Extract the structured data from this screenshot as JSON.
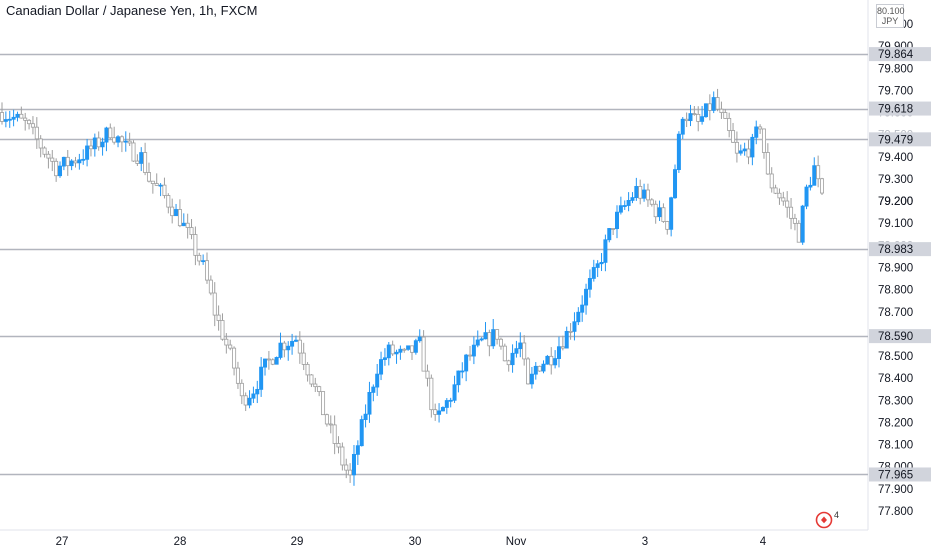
{
  "header": {
    "title": "Canadian Dollar / Japanese Yen, 1h, FXCM"
  },
  "currency_badge": {
    "top_text": "80.100",
    "label": "JPY"
  },
  "watermark": {
    "badge_number": "4"
  },
  "colors": {
    "up": "#2196f3",
    "down": "#9e9e9e",
    "level_line": "#b2b5be",
    "level_label_bg": "#d1d4dc",
    "axis_text": "#131722",
    "time_text": "#131722",
    "logo": "#e53935"
  },
  "chart_data": {
    "type": "candlestick",
    "title": "Canadian Dollar / Japanese Yen, 1h, FXCM",
    "ylim": [
      77.72,
      80.14
    ],
    "y_ticks": [
      "80.000",
      "79.900",
      "79.800",
      "79.700",
      "79.600",
      "79.500",
      "79.400",
      "79.300",
      "79.200",
      "79.100",
      "79.000",
      "78.900",
      "78.800",
      "78.700",
      "78.600",
      "78.500",
      "78.400",
      "78.300",
      "78.200",
      "78.100",
      "78.000",
      "77.900",
      "77.800"
    ],
    "x_labels": [
      "27",
      "28",
      "29",
      "30",
      "Nov",
      "3",
      "4"
    ],
    "horizontal_levels": [
      "79.864",
      "79.618",
      "79.479",
      "78.983",
      "78.590",
      "77.965"
    ],
    "highlight_price": "79.200",
    "approx_close_path": [
      [
        0,
        79.6
      ],
      [
        6,
        79.55
      ],
      [
        10,
        79.45
      ],
      [
        14,
        79.35
      ],
      [
        18,
        79.38
      ],
      [
        22,
        79.42
      ],
      [
        26,
        79.48
      ],
      [
        28,
        79.52
      ],
      [
        32,
        79.44
      ],
      [
        36,
        79.4
      ],
      [
        38,
        79.3
      ],
      [
        42,
        79.22
      ],
      [
        46,
        79.12
      ],
      [
        48,
        79.05
      ],
      [
        52,
        78.9
      ],
      [
        55,
        78.7
      ],
      [
        58,
        78.55
      ],
      [
        60,
        78.45
      ],
      [
        62,
        78.3
      ],
      [
        65,
        78.35
      ],
      [
        68,
        78.45
      ],
      [
        72,
        78.55
      ],
      [
        76,
        78.58
      ],
      [
        80,
        78.4
      ],
      [
        84,
        78.2
      ],
      [
        88,
        78.02
      ],
      [
        90,
        77.95
      ],
      [
        94,
        78.25
      ],
      [
        97,
        78.45
      ],
      [
        100,
        78.52
      ],
      [
        104,
        78.5
      ],
      [
        108,
        78.55
      ],
      [
        112,
        78.2
      ],
      [
        116,
        78.32
      ],
      [
        120,
        78.48
      ],
      [
        124,
        78.56
      ],
      [
        128,
        78.6
      ],
      [
        130,
        78.48
      ],
      [
        134,
        78.55
      ],
      [
        136,
        78.35
      ],
      [
        138,
        78.45
      ],
      [
        142,
        78.5
      ],
      [
        146,
        78.6
      ],
      [
        150,
        78.75
      ],
      [
        154,
        78.9
      ],
      [
        158,
        79.1
      ],
      [
        162,
        79.2
      ],
      [
        164,
        79.25
      ],
      [
        168,
        79.18
      ],
      [
        172,
        79.1
      ],
      [
        174,
        79.35
      ],
      [
        176,
        79.6
      ],
      [
        180,
        79.55
      ],
      [
        184,
        79.65
      ],
      [
        188,
        79.5
      ],
      [
        190,
        79.4
      ],
      [
        194,
        79.45
      ],
      [
        196,
        79.55
      ],
      [
        198,
        79.3
      ],
      [
        202,
        79.2
      ],
      [
        206,
        79.05
      ],
      [
        208,
        79.25
      ],
      [
        210,
        79.35
      ],
      [
        212,
        79.2
      ]
    ]
  }
}
